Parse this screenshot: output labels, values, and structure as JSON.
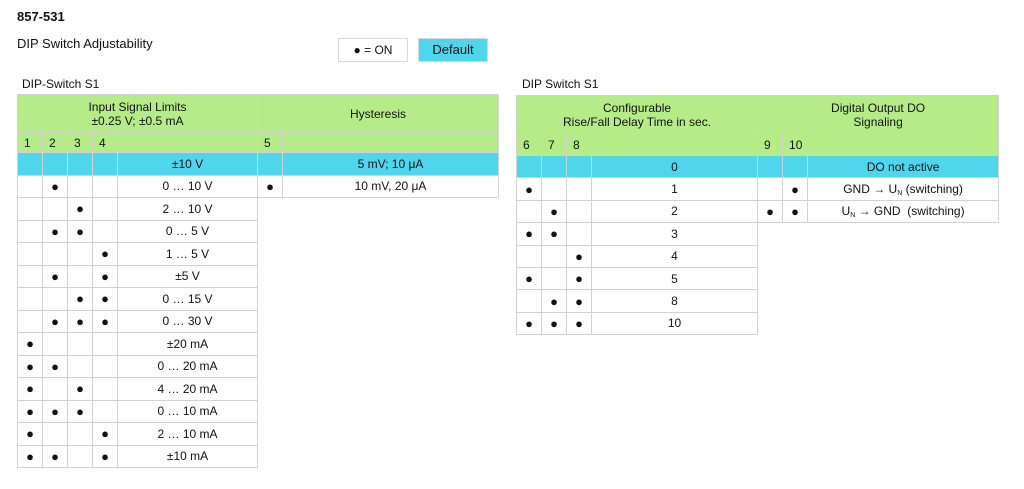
{
  "header": {
    "code": "857-531",
    "subtitle": "DIP Switch Adjustability",
    "legend_on": "● = ON",
    "legend_default": "Default"
  },
  "colors": {
    "header_green": "#b6ec88",
    "default_cyan": "#4fd6ec"
  },
  "table1": {
    "label": "DIP-Switch S1",
    "group1_line1": "Input Signal Limits",
    "group1_line2": "±0.25 V; ±0.5 mA",
    "group2": "Hysteresis",
    "switches": [
      "1",
      "2",
      "3",
      "4"
    ],
    "hys_switch": "5",
    "rows": [
      {
        "s": [
          "",
          "",
          "",
          ""
        ],
        "v": "±10 V",
        "default": true
      },
      {
        "s": [
          "",
          "●",
          "",
          ""
        ],
        "v": "0 … 10 V"
      },
      {
        "s": [
          "",
          "",
          "●",
          ""
        ],
        "v": "2 … 10 V"
      },
      {
        "s": [
          "",
          "●",
          "●",
          ""
        ],
        "v": "0 … 5 V"
      },
      {
        "s": [
          "",
          "",
          "",
          "●"
        ],
        "v": "1 … 5 V"
      },
      {
        "s": [
          "",
          "●",
          "",
          "●"
        ],
        "v": "±5 V"
      },
      {
        "s": [
          "",
          "",
          "●",
          "●"
        ],
        "v": "0 … 15 V"
      },
      {
        "s": [
          "",
          "●",
          "●",
          "●"
        ],
        "v": "0 … 30 V"
      },
      {
        "s": [
          "●",
          "",
          "",
          ""
        ],
        "v": "±20 mA"
      },
      {
        "s": [
          "●",
          "●",
          "",
          ""
        ],
        "v": "0 … 20 mA"
      },
      {
        "s": [
          "●",
          "",
          "●",
          ""
        ],
        "v": "4 … 20 mA"
      },
      {
        "s": [
          "●",
          "●",
          "●",
          ""
        ],
        "v": "0 … 10 mA"
      },
      {
        "s": [
          "●",
          "",
          "",
          "●"
        ],
        "v": "2 … 10 mA"
      },
      {
        "s": [
          "●",
          "●",
          "",
          "●"
        ],
        "v": "±10 mA"
      }
    ],
    "hys_rows": [
      {
        "s": "",
        "v": "5 mV; 10 μA"
      },
      {
        "s": "●",
        "v": "10 mV, 20 μA"
      }
    ]
  },
  "table2": {
    "label": "DIP Switch S1",
    "group1_line1": "Configurable",
    "group1_line2": "Rise/Fall Delay Time in sec.",
    "group2_line1": "Digital Output DO",
    "group2_line2": "Signaling",
    "switches": [
      "6",
      "7",
      "8"
    ],
    "do_switches": [
      "9",
      "10"
    ],
    "rows": [
      {
        "s": [
          "",
          "",
          ""
        ],
        "v": "0"
      },
      {
        "s": [
          "●",
          "",
          ""
        ],
        "v": "1"
      },
      {
        "s": [
          "",
          "●",
          ""
        ],
        "v": "2"
      },
      {
        "s": [
          "●",
          "●",
          ""
        ],
        "v": "3"
      },
      {
        "s": [
          "",
          "",
          "●"
        ],
        "v": "4"
      },
      {
        "s": [
          "●",
          "",
          "●"
        ],
        "v": "5"
      },
      {
        "s": [
          "",
          "●",
          "●"
        ],
        "v": "8"
      },
      {
        "s": [
          "●",
          "●",
          "●"
        ],
        "v": "10"
      }
    ],
    "do_rows": [
      {
        "s": [
          "",
          ""
        ],
        "pre": "DO not active",
        "sub": "",
        "post": ""
      },
      {
        "s": [
          "",
          "●"
        ],
        "pre": "GND → U",
        "sub": "N",
        "post": " (switching)"
      },
      {
        "s": [
          "●",
          "●"
        ],
        "pre": "U",
        "sub": "N",
        "post": " → GND  (switching)"
      }
    ]
  }
}
